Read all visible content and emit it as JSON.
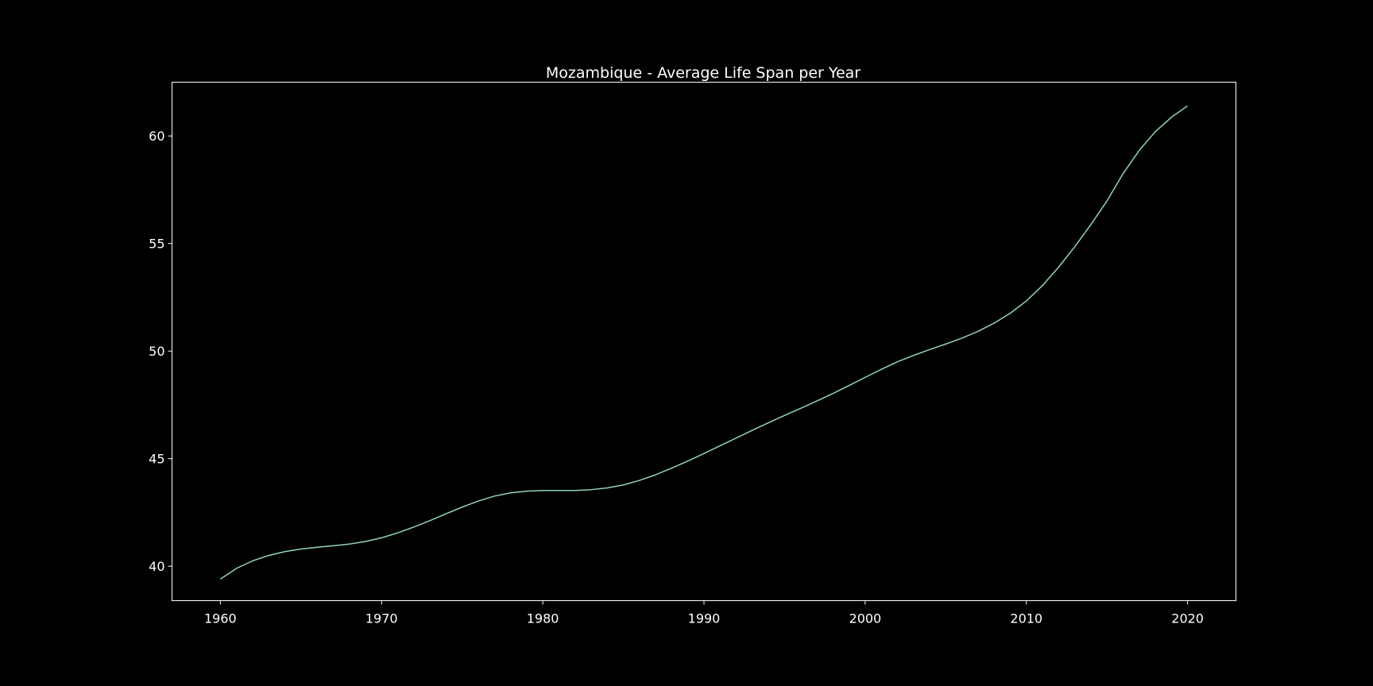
{
  "chart_data": {
    "type": "line",
    "title": "Mozambique - Average Life Span per Year",
    "xlabel": "",
    "ylabel": "",
    "xlim": [
      1957,
      2023
    ],
    "ylim": [
      38.4,
      62.5
    ],
    "xticks": [
      1960,
      1970,
      1980,
      1990,
      2000,
      2010,
      2020
    ],
    "yticks": [
      40,
      45,
      50,
      55,
      60
    ],
    "grid": false,
    "legend": "none",
    "colors": {
      "background": "#000000",
      "line": "#8dd3c7",
      "axes": "#ffffff",
      "text": "#ffffff"
    },
    "series": [
      {
        "x": [
          1960,
          1961,
          1962,
          1963,
          1964,
          1965,
          1966,
          1967,
          1968,
          1969,
          1970,
          1971,
          1972,
          1973,
          1974,
          1975,
          1976,
          1977,
          1978,
          1979,
          1980,
          1981,
          1982,
          1983,
          1984,
          1985,
          1986,
          1987,
          1988,
          1989,
          1990,
          1991,
          1992,
          1993,
          1994,
          1995,
          1996,
          1997,
          1998,
          1999,
          2000,
          2001,
          2002,
          2003,
          2004,
          2005,
          2006,
          2007,
          2008,
          2009,
          2010,
          2011,
          2012,
          2013,
          2014,
          2015,
          2016,
          2017,
          2018,
          2019,
          2020
        ],
        "values": [
          39.4,
          39.9,
          40.25,
          40.5,
          40.68,
          40.8,
          40.88,
          40.95,
          41.03,
          41.15,
          41.32,
          41.55,
          41.82,
          42.12,
          42.44,
          42.75,
          43.03,
          43.26,
          43.41,
          43.49,
          43.52,
          43.52,
          43.52,
          43.56,
          43.64,
          43.78,
          43.99,
          44.25,
          44.56,
          44.89,
          45.24,
          45.6,
          45.96,
          46.32,
          46.67,
          47.01,
          47.34,
          47.68,
          48.03,
          48.4,
          48.78,
          49.15,
          49.5,
          49.8,
          50.07,
          50.33,
          50.6,
          50.92,
          51.3,
          51.76,
          52.33,
          53.05,
          53.9,
          54.85,
          55.88,
          56.98,
          58.25,
          59.33,
          60.2,
          60.87,
          61.4
        ]
      }
    ]
  }
}
